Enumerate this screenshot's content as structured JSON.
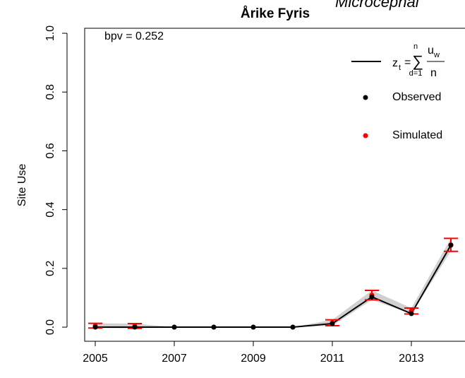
{
  "chart_data": {
    "type": "line",
    "title": "Årike Fyris",
    "subtitle": "Microcephal",
    "annotation": "bpv = 0.252",
    "y_label": "Site Use",
    "x": [
      2005,
      2006,
      2007,
      2008,
      2009,
      2010,
      2011,
      2012,
      2013,
      2014
    ],
    "series": [
      {
        "name": "Observed",
        "color": "#000000",
        "values": [
          0,
          0,
          0,
          0,
          0,
          0,
          0.012,
          0.103,
          0.046,
          0.279
        ]
      },
      {
        "name": "Simulated",
        "color": "#ff0000",
        "values": [
          0.005,
          0.004,
          0,
          0,
          0,
          0,
          0.015,
          0.109,
          0.055,
          0.28
        ],
        "errors": [
          0.008,
          0.008,
          0,
          0,
          0,
          0,
          0.01,
          0.016,
          0.01,
          0.022
        ]
      }
    ],
    "legend_formula": {
      "lhs": "z",
      "lhs_sub": "t",
      "eq": "=",
      "sum_top": "n",
      "sum_bottom": "d=1",
      "num": "u",
      "num_sub": "w",
      "den": "n"
    },
    "band_color": "#d0d0d0",
    "xlim": [
      2004.732,
      2014.554
    ],
    "xticks": [
      2005,
      2007,
      2009,
      2011,
      2013
    ],
    "ylim": [
      -0.048,
      1.017
    ],
    "yticks": [
      {
        "value": 0,
        "label": "0.0"
      },
      0.2,
      0.4,
      0.6,
      0.8,
      {
        "value": 1,
        "label": "1.0"
      }
    ],
    "legend": "top-right"
  }
}
